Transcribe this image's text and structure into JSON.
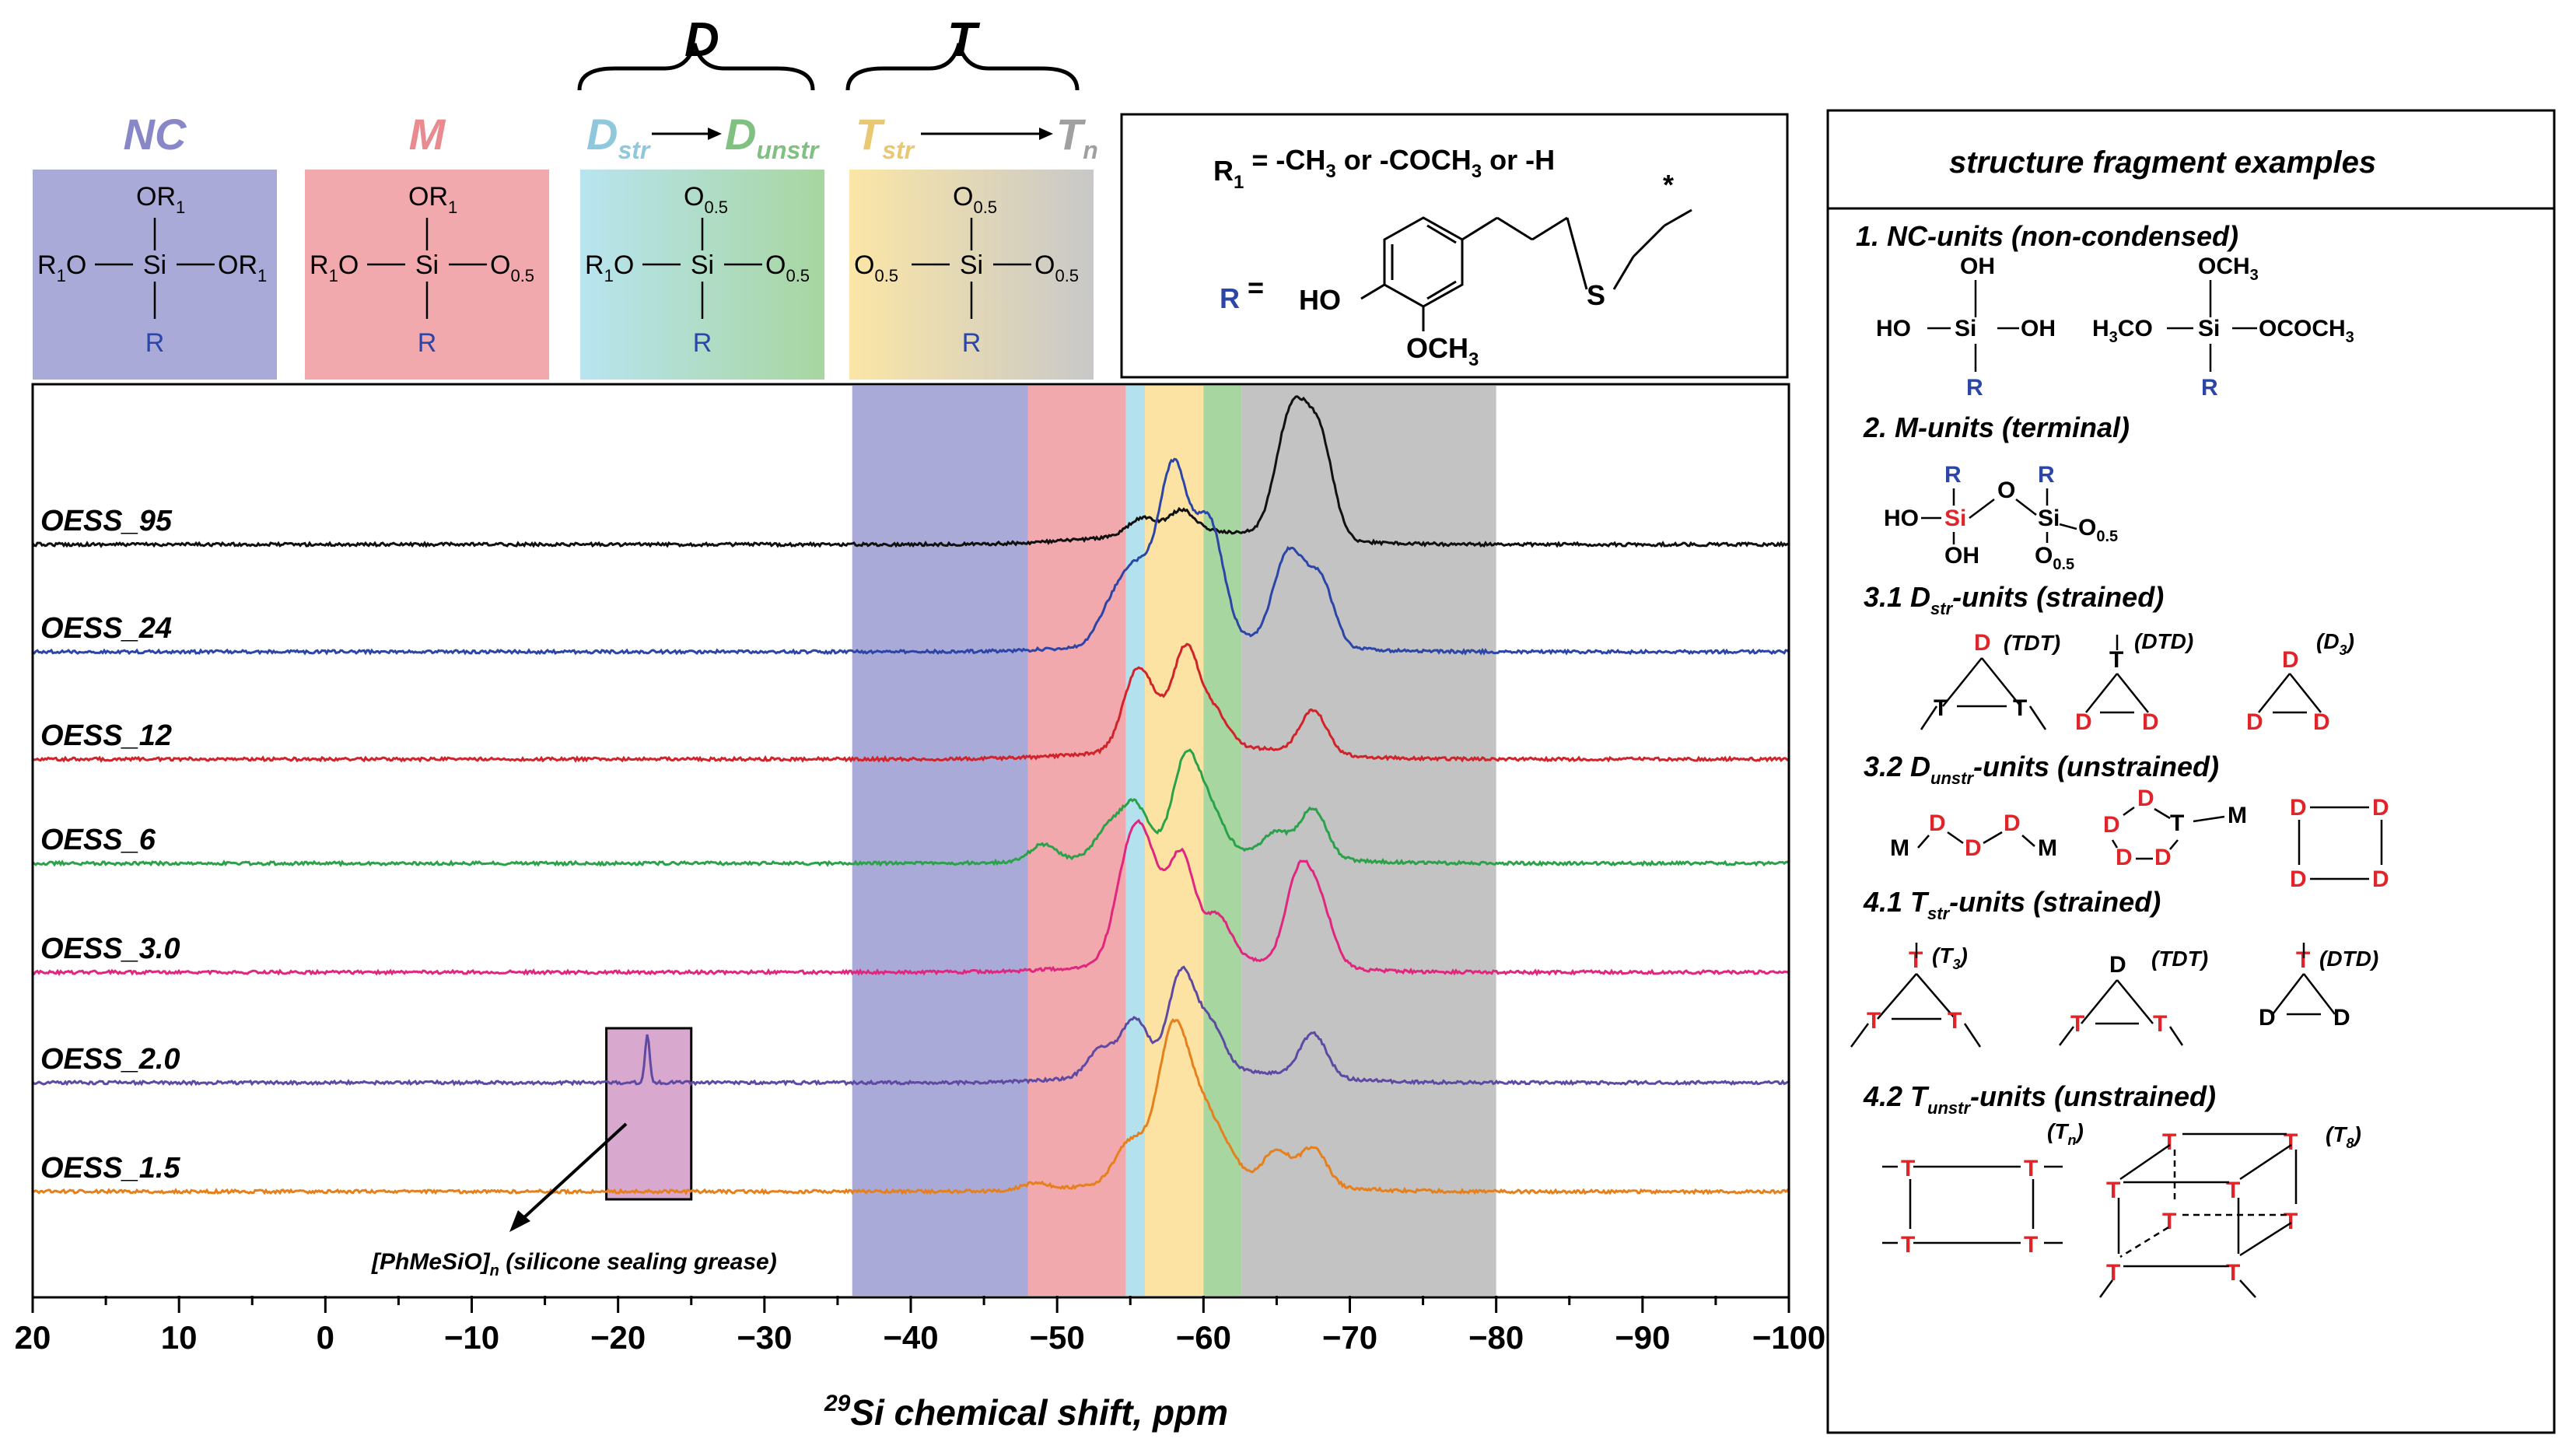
{
  "chart_data": {
    "type": "line",
    "xlabel_sup": "29",
    "xlabel": "Si chemical shift, ppm",
    "xlim": [
      20,
      -100
    ],
    "xticks": [
      20,
      10,
      0,
      -10,
      -20,
      -30,
      -40,
      -50,
      -60,
      -70,
      -80,
      -90,
      -100
    ],
    "xtick_labels": [
      "20",
      "10",
      "0",
      "−10",
      "−20",
      "−30",
      "−40",
      "−50",
      "−60",
      "−70",
      "−80",
      "−90",
      "−100"
    ],
    "bands": [
      {
        "name": "NC",
        "from": -36,
        "to": -48,
        "color": "#aaaad8"
      },
      {
        "name": "M",
        "from": -48,
        "to": -54.7,
        "color": "#f2a9ae"
      },
      {
        "name": "Dstr",
        "from": -54.7,
        "to": -56,
        "color": "#b3e2ee"
      },
      {
        "name": "T",
        "from": -56,
        "to": -60,
        "color": "#fce3a3"
      },
      {
        "name": "Dunstr",
        "from": -60,
        "to": -62.6,
        "color": "#a8d6a0"
      },
      {
        "name": "Tn",
        "from": -62.6,
        "to": -80,
        "color": "#c3c3c3"
      }
    ],
    "series": [
      {
        "name": "OESS_95",
        "color": "#111111",
        "peaks": [
          [
            -58.5,
            0.2
          ],
          [
            -65.5,
            0.6
          ],
          [
            -66.5,
            0.75
          ],
          [
            -68,
            0.85
          ],
          [
            -55.8,
            0.15
          ]
        ]
      },
      {
        "name": "OESS_24",
        "color": "#2b45a8",
        "peaks": [
          [
            -53.5,
            0.25
          ],
          [
            -54.7,
            0.35
          ],
          [
            -55.8,
            0.45
          ],
          [
            -57.5,
            0.8
          ],
          [
            -58.3,
            0.95
          ],
          [
            -60.2,
            0.85
          ],
          [
            -61,
            0.3
          ],
          [
            -65.3,
            0.4
          ],
          [
            -66.2,
            0.55
          ],
          [
            -68,
            0.6
          ]
        ]
      },
      {
        "name": "OESS_12",
        "color": "#d1232a",
        "peaks": [
          [
            -55.3,
            0.6
          ],
          [
            -56.5,
            0.3
          ],
          [
            -58.8,
            0.9
          ],
          [
            -60.8,
            0.3
          ],
          [
            -67.5,
            0.4
          ]
        ]
      },
      {
        "name": "OESS_6",
        "color": "#2ba24a",
        "peaks": [
          [
            -49,
            0.15
          ],
          [
            -53.5,
            0.25
          ],
          [
            -55.3,
            0.45
          ],
          [
            -58.8,
            0.85
          ],
          [
            -60.5,
            0.35
          ],
          [
            -65,
            0.2
          ],
          [
            -67.5,
            0.45
          ]
        ]
      },
      {
        "name": "OESS_3.0",
        "color": "#e0267e",
        "peaks": [
          [
            -54.5,
            0.5
          ],
          [
            -55.5,
            0.75
          ],
          [
            -56.5,
            0.5
          ],
          [
            -58.5,
            0.95
          ],
          [
            -61,
            0.4
          ],
          [
            -66.5,
            0.8
          ],
          [
            -68,
            0.5
          ]
        ]
      },
      {
        "name": "OESS_2.0",
        "color": "#5e4aa3",
        "peaks": [
          [
            -22,
            0.45
          ],
          [
            -53,
            0.25
          ],
          [
            -55.3,
            0.5
          ],
          [
            -58.5,
            0.9
          ],
          [
            -60.5,
            0.4
          ],
          [
            -67.5,
            0.4
          ]
        ]
      },
      {
        "name": "OESS_1.5",
        "color": "#e6801c",
        "peaks": [
          [
            -48.5,
            0.06
          ],
          [
            -54.5,
            0.2
          ],
          [
            -55.5,
            0.25
          ],
          [
            -57.5,
            0.85
          ],
          [
            -58.5,
            0.8
          ],
          [
            -60,
            0.5
          ],
          [
            -61.5,
            0.25
          ],
          [
            -65,
            0.3
          ],
          [
            -67.5,
            0.35
          ]
        ]
      }
    ],
    "annotation": {
      "label": "[PhMeSiO]",
      "sub": "n",
      "label_rest": " (silicone sealing grease)",
      "x_from": -19.2,
      "x_to": -25,
      "color": "#d8a8cf"
    }
  },
  "header": {
    "group_D": "D",
    "group_T": "T",
    "units": [
      {
        "title": "NC",
        "title_color": "#8888c8",
        "color": "#aaaad8",
        "top": "OR",
        "top_sub": "1",
        "left": "R",
        "left_sub": "1",
        "left_rest": "O",
        "right": "OR",
        "right_sub": "1",
        "bottom": "R"
      },
      {
        "title": "M",
        "title_color": "#e88a90",
        "color": "#f2a9ae",
        "top": "OR",
        "top_sub": "1",
        "left": "R",
        "left_sub": "1",
        "left_rest": "O",
        "right": "O",
        "right_sub": "0.5",
        "bottom": "R"
      },
      {
        "title": "D",
        "title_sub": "str",
        "title2": "D",
        "title2_sub": "unstr",
        "title_color": "#8fc8dc",
        "title2_color": "#80c080",
        "top": "O",
        "top_sub": "0.5",
        "left": "R",
        "left_sub": "1",
        "left_rest": "O",
        "right": "O",
        "right_sub": "0.5",
        "bottom": "R"
      },
      {
        "title": "T",
        "title_sub": "str",
        "title2": "T",
        "title2_sub": "n",
        "title_color": "#e8c870",
        "title2_color": "#a0a0a0",
        "top": "O",
        "top_sub": "0.5",
        "left": "O",
        "left_sub": "0.5",
        "left_rest": "",
        "right": "O",
        "right_sub": "0.5",
        "bottom": "R"
      }
    ],
    "center_atom": "Si"
  },
  "legend_box": {
    "r1_label": "R",
    "r1_sub": "1",
    "r1_text": " = -CH",
    "r1_sub2": "3",
    "r1_text2": " or -COCH",
    "r1_sub3": "3",
    "r1_text3": " or -H",
    "r_label": "R",
    "r_eq": " =",
    "ho": "HO",
    "och3": "OCH",
    "och3_sub": "3",
    "s": "S",
    "star": "*"
  },
  "samples": [
    "OESS_95",
    "OESS_24",
    "OESS_12",
    "OESS_6",
    "OESS_3.0",
    "OESS_2.0",
    "OESS_1.5"
  ],
  "panel": {
    "title": "structure fragment examples",
    "sec1": "1.  NC-units (non-condensed)",
    "sec2": "2. M-units (terminal)",
    "sec31a": "3.1 D",
    "sec31sub": "str",
    "sec31b": "-units (strained)",
    "sec32a": "3.2 D",
    "sec32sub": "unstr",
    "sec32b": "-units (unstrained)",
    "sec41a": "4.1 T",
    "sec41sub": "str",
    "sec41b": "-units (strained)",
    "sec42a": "4.2 T",
    "sec42sub": "unstr",
    "sec42b": "-units (unstrained)",
    "nc1": {
      "top": "OH",
      "left": "HO",
      "center": "Si",
      "right": "OH",
      "bottom": "R"
    },
    "nc2": {
      "top": "OCH",
      "top_sub": "3",
      "left": "H",
      "left_sub": "3",
      "left_rest": "CO",
      "center": "Si",
      "right": "OCOCH",
      "right_sub": "3",
      "bottom": "R"
    },
    "m_struct": {
      "r": "R",
      "ho": "HO",
      "si_red": "Si",
      "o": "O",
      "si": "Si",
      "oh": "OH",
      "o05": "O",
      "o05_sub": "0.5"
    },
    "d31_labels": [
      "(TDT)",
      "(DTD)",
      "(D",
      "3",
      ")"
    ],
    "t41_labels": [
      "(T",
      "3",
      ")",
      "(TDT)",
      "(DTD)"
    ],
    "t42_labels": [
      "(T",
      "n",
      ")",
      "(T",
      "8",
      ")"
    ],
    "D": "D",
    "T": "T",
    "M": "M"
  }
}
